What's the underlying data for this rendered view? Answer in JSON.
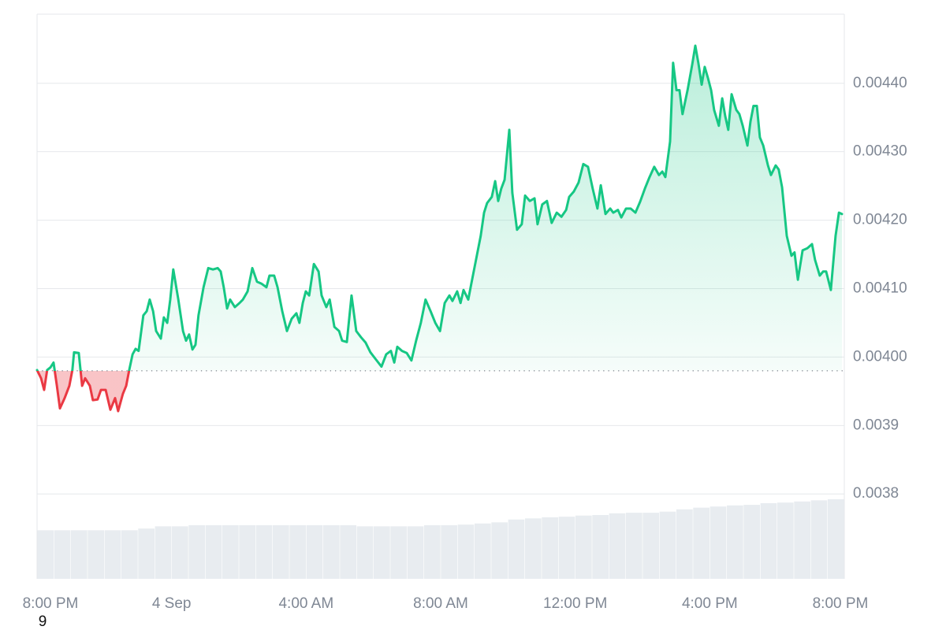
{
  "chart_data": {
    "type": "area",
    "x": [
      0.0,
      0.12,
      0.21,
      0.3,
      0.4,
      0.49,
      0.59,
      0.68,
      0.82,
      0.96,
      1.05,
      1.1,
      1.24,
      1.34,
      1.43,
      1.57,
      1.66,
      1.8,
      1.9,
      2.04,
      2.18,
      2.32,
      2.41,
      2.55,
      2.65,
      2.74,
      2.84,
      2.93,
      3.02,
      3.16,
      3.26,
      3.35,
      3.45,
      3.54,
      3.68,
      3.77,
      3.87,
      3.96,
      4.05,
      4.2,
      4.34,
      4.43,
      4.52,
      4.62,
      4.71,
      4.8,
      4.95,
      5.09,
      5.23,
      5.37,
      5.46,
      5.55,
      5.65,
      5.74,
      5.88,
      6.02,
      6.12,
      6.26,
      6.4,
      6.54,
      6.68,
      6.82,
      6.91,
      7.05,
      7.15,
      7.29,
      7.43,
      7.57,
      7.71,
      7.8,
      7.9,
      7.99,
      8.09,
      8.23,
      8.37,
      8.46,
      8.6,
      8.7,
      8.84,
      8.98,
      9.07,
      9.21,
      9.35,
      9.49,
      9.63,
      9.77,
      9.91,
      10.05,
      10.24,
      10.38,
      10.52,
      10.62,
      10.71,
      10.85,
      10.99,
      11.13,
      11.27,
      11.41,
      11.55,
      11.7,
      11.84,
      11.98,
      12.12,
      12.26,
      12.35,
      12.49,
      12.59,
      12.68,
      12.82,
      12.91,
      13.05,
      13.19,
      13.29,
      13.38,
      13.52,
      13.62,
      13.71,
      13.8,
      13.9,
      14.04,
      14.13,
      14.27,
      14.41,
      14.51,
      14.65,
      14.79,
      14.88,
      15.02,
      15.16,
      15.3,
      15.45,
      15.59,
      15.73,
      15.82,
      15.96,
      16.1,
      16.24,
      16.38,
      16.52,
      16.66,
      16.76,
      16.9,
      17.04,
      17.13,
      17.27,
      17.37,
      17.51,
      17.65,
      17.79,
      17.93,
      18.07,
      18.21,
      18.35,
      18.49,
      18.59,
      18.68,
      18.82,
      18.91,
      19.01,
      19.1,
      19.19,
      19.34,
      19.48,
      19.57,
      19.66,
      19.76,
      19.85,
      19.95,
      20.04,
      20.13,
      20.27,
      20.37,
      20.46,
      20.55,
      20.65,
      20.79,
      20.88,
      20.98,
      21.12,
      21.21,
      21.3,
      21.4,
      21.49,
      21.59,
      21.73,
      21.82,
      21.96,
      22.05,
      22.15,
      22.29,
      22.43,
      22.52,
      22.62,
      22.76,
      22.9,
      23.04,
      23.13,
      23.27,
      23.37,
      23.46,
      23.6,
      23.74,
      23.84,
      23.93
    ],
    "values": [
      0.003981,
      0.003969,
      0.003952,
      0.003981,
      0.003985,
      0.003992,
      0.003958,
      0.003925,
      0.00394,
      0.003958,
      0.003981,
      0.004007,
      0.004006,
      0.003958,
      0.003969,
      0.003958,
      0.003937,
      0.003938,
      0.003952,
      0.003952,
      0.003923,
      0.00394,
      0.003921,
      0.003946,
      0.003958,
      0.003981,
      0.004004,
      0.004012,
      0.004009,
      0.004061,
      0.004067,
      0.004084,
      0.004067,
      0.004038,
      0.004027,
      0.004058,
      0.00405,
      0.004084,
      0.004128,
      0.004084,
      0.004038,
      0.004024,
      0.004033,
      0.004011,
      0.004018,
      0.004061,
      0.004102,
      0.00413,
      0.004128,
      0.00413,
      0.004125,
      0.004102,
      0.004071,
      0.004084,
      0.004073,
      0.004079,
      0.004084,
      0.004096,
      0.00413,
      0.00411,
      0.004107,
      0.004102,
      0.004119,
      0.004119,
      0.004102,
      0.004067,
      0.004038,
      0.004056,
      0.004064,
      0.00405,
      0.004079,
      0.004096,
      0.00409,
      0.004136,
      0.004125,
      0.00409,
      0.004073,
      0.004084,
      0.004044,
      0.004038,
      0.004024,
      0.004022,
      0.00409,
      0.004038,
      0.004029,
      0.004021,
      0.004007,
      0.003998,
      0.003986,
      0.004004,
      0.004009,
      0.003992,
      0.004015,
      0.004009,
      0.004006,
      0.003995,
      0.004024,
      0.00405,
      0.004084,
      0.004067,
      0.00405,
      0.004038,
      0.004079,
      0.00409,
      0.004082,
      0.004096,
      0.004079,
      0.004098,
      0.004084,
      0.004107,
      0.004142,
      0.004177,
      0.004211,
      0.004225,
      0.004234,
      0.004257,
      0.004228,
      0.004246,
      0.004259,
      0.004332,
      0.00424,
      0.004186,
      0.004194,
      0.004236,
      0.004228,
      0.004232,
      0.004194,
      0.004223,
      0.004228,
      0.004196,
      0.004211,
      0.004205,
      0.004215,
      0.004234,
      0.004242,
      0.004255,
      0.004282,
      0.004278,
      0.004246,
      0.004217,
      0.004251,
      0.004209,
      0.004217,
      0.004211,
      0.004215,
      0.004204,
      0.004217,
      0.004217,
      0.004211,
      0.004227,
      0.004246,
      0.004263,
      0.004278,
      0.004266,
      0.004271,
      0.004263,
      0.004315,
      0.00443,
      0.00439,
      0.00439,
      0.004355,
      0.00439,
      0.004428,
      0.004455,
      0.00443,
      0.004398,
      0.004424,
      0.004407,
      0.00439,
      0.004361,
      0.004338,
      0.004378,
      0.004352,
      0.004332,
      0.004384,
      0.004361,
      0.004355,
      0.004338,
      0.004309,
      0.004344,
      0.004367,
      0.004367,
      0.004321,
      0.004309,
      0.00428,
      0.004266,
      0.00428,
      0.004274,
      0.004248,
      0.004177,
      0.004148,
      0.004153,
      0.004113,
      0.004156,
      0.004159,
      0.004165,
      0.004142,
      0.004119,
      0.004125,
      0.004125,
      0.004098,
      0.004177,
      0.004211,
      0.004209
    ],
    "up_color": "#16c784",
    "down_color": "#ea3943",
    "baseline": 0.00398,
    "xlim": [
      0,
      24
    ],
    "ylim": [
      0.003676,
      0.004501
    ],
    "xticks": [
      {
        "value": 0,
        "label": "8:00 PM"
      },
      {
        "value": 4,
        "label": "4 Sep"
      },
      {
        "value": 8,
        "label": "4:00 AM"
      },
      {
        "value": 12,
        "label": "8:00 AM"
      },
      {
        "value": 16,
        "label": "12:00 PM"
      },
      {
        "value": 20,
        "label": "4:00 PM"
      },
      {
        "value": 24,
        "label": "8:00 PM"
      }
    ],
    "yticks": [
      0.0038,
      0.0039,
      {
        "value": 0.004,
        "label": "0.00400"
      },
      {
        "value": 0.0041,
        "label": "0.00410"
      },
      {
        "value": 0.0042,
        "label": "0.00420"
      },
      {
        "value": 0.0043,
        "label": "0.00430"
      },
      {
        "value": 0.0044,
        "label": "0.00440"
      }
    ],
    "grid": true,
    "volume": {
      "color": "#e8ecf0",
      "values": [
        8.6,
        8.6,
        8.6,
        8.6,
        8.6,
        8.6,
        8.9,
        9.3,
        9.3,
        9.5,
        9.5,
        9.5,
        9.5,
        9.5,
        9.5,
        9.5,
        9.5,
        9.5,
        9.5,
        9.3,
        9.3,
        9.3,
        9.3,
        9.5,
        9.5,
        9.6,
        9.8,
        10.0,
        10.5,
        10.7,
        10.9,
        11.0,
        11.2,
        11.3,
        11.6,
        11.7,
        11.7,
        11.9,
        12.3,
        12.6,
        12.8,
        13.0,
        13.1,
        13.4,
        13.5,
        13.7,
        13.9,
        14.1
      ]
    },
    "y2lim": [
      0,
      100
    ],
    "stray_label": "9"
  }
}
